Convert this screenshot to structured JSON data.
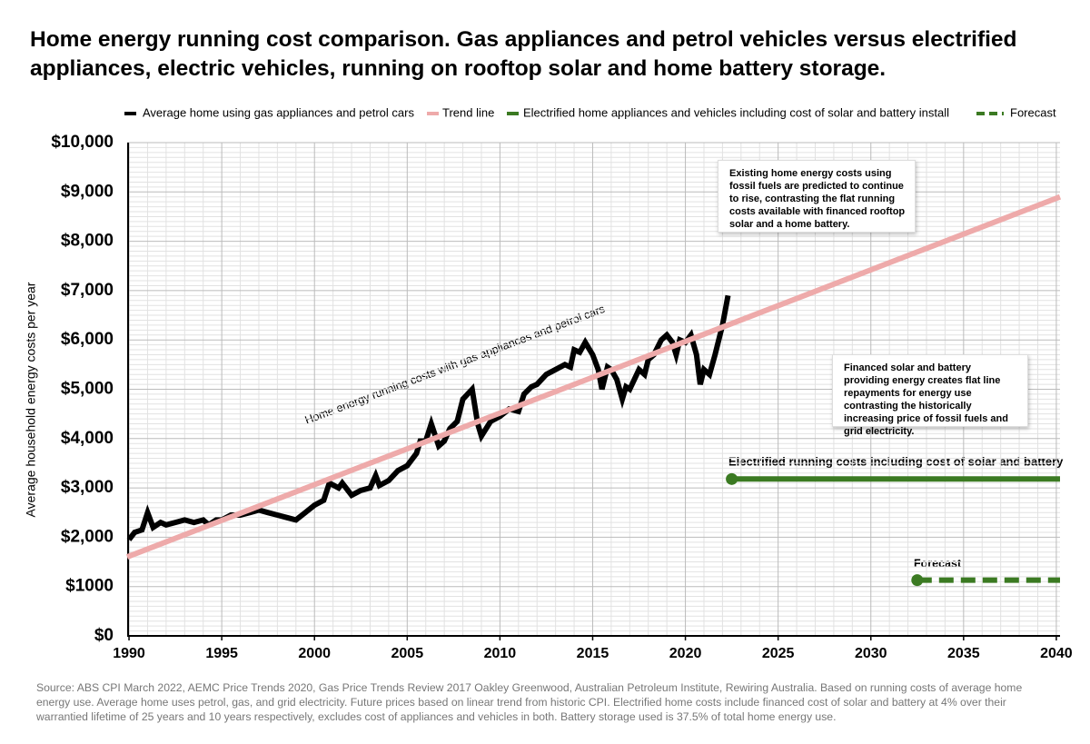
{
  "chart_data": {
    "type": "line",
    "title": "Home energy running cost comparison. Gas appliances and petrol vehicles versus electrified appliances, electric vehicles, running on rooftop solar and home battery storage.",
    "y_label": "Average household energy costs per year",
    "xlim": [
      1989.9,
      2040.2
    ],
    "ylim": [
      0,
      10000
    ],
    "xticks": [
      1990,
      1995,
      2000,
      2005,
      2010,
      2015,
      2020,
      2025,
      2030,
      2035,
      2040
    ],
    "yticks": [
      {
        "value": 0,
        "label": "$0"
      },
      {
        "value": 1000,
        "label": "$1000"
      },
      {
        "value": 2000,
        "label": "$2,000"
      },
      {
        "value": 3000,
        "label": "$3,000"
      },
      {
        "value": 4000,
        "label": "$4,000"
      },
      {
        "value": 5000,
        "label": "$5,000"
      },
      {
        "value": 6000,
        "label": "$6,000"
      },
      {
        "value": 7000,
        "label": "$7,000"
      },
      {
        "value": 8000,
        "label": "$8,000"
      },
      {
        "value": 9000,
        "label": "$9,000"
      },
      {
        "value": 10000,
        "label": "$10,000"
      }
    ],
    "grid": true,
    "series": [
      {
        "name": "Average home using gas appliances and petrol cars",
        "color": "#000000",
        "dash": false,
        "start_marker": false,
        "x": [
          1990,
          1990.3,
          1990.7,
          1991,
          1991.3,
          1991.7,
          1992,
          1992.5,
          1993,
          1993.5,
          1994,
          1994.3,
          1994.7,
          1995,
          1995.5,
          1996,
          1996.5,
          1997,
          1997.5,
          1998,
          1998.5,
          1999,
          1999.5,
          2000,
          2000.5,
          2000.8,
          2001.3,
          2001.5,
          2002,
          2002.5,
          2003,
          2003.3,
          2003.5,
          2004,
          2004.5,
          2005,
          2005.5,
          2005.7,
          2006,
          2006.3,
          2006.7,
          2007,
          2007.3,
          2007.7,
          2008,
          2008.5,
          2008.8,
          2009,
          2009.5,
          2010,
          2010.5,
          2011,
          2011.3,
          2011.7,
          2012,
          2012.5,
          2013,
          2013.5,
          2013.8,
          2014,
          2014.3,
          2014.6,
          2015,
          2015.3,
          2015.5,
          2015.8,
          2016,
          2016.3,
          2016.6,
          2016.8,
          2017,
          2017.5,
          2017.8,
          2018,
          2018.3,
          2018.7,
          2019,
          2019.3,
          2019.5,
          2019.7,
          2020,
          2020.3,
          2020.6,
          2020.8,
          2021,
          2021.3,
          2021.6,
          2022,
          2022.3
        ],
        "values": [
          1950,
          2100,
          2150,
          2500,
          2200,
          2300,
          2250,
          2300,
          2350,
          2300,
          2350,
          2250,
          2350,
          2350,
          2450,
          2450,
          2500,
          2550,
          2500,
          2450,
          2400,
          2350,
          2500,
          2650,
          2750,
          3100,
          3000,
          3100,
          2850,
          2950,
          3000,
          3250,
          3050,
          3150,
          3350,
          3450,
          3700,
          3950,
          3950,
          4300,
          3850,
          3950,
          4200,
          4350,
          4800,
          5000,
          4300,
          4050,
          4350,
          4450,
          4600,
          4550,
          4900,
          5050,
          5100,
          5300,
          5400,
          5500,
          5450,
          5800,
          5750,
          5950,
          5700,
          5400,
          5000,
          5450,
          5400,
          5200,
          4800,
          5050,
          5000,
          5400,
          5300,
          5600,
          5700,
          6000,
          6100,
          5950,
          5700,
          6000,
          5950,
          6100,
          5700,
          5100,
          5400,
          5300,
          5700,
          6300,
          6900
        ]
      },
      {
        "name": "Trend line",
        "color": "#eeaaaa",
        "dash": false,
        "start_marker": false,
        "x": [
          1989.9,
          2040.2
        ],
        "values": [
          1600,
          8900
        ]
      },
      {
        "name": "Electrified home appliances and vehicles including cost of solar and battery install",
        "color": "#3b7a22",
        "dash": false,
        "start_marker": true,
        "x": [
          2022.5,
          2040.2
        ],
        "values": [
          3180,
          3180
        ]
      },
      {
        "name": "Forecast",
        "color": "#3b7a22",
        "dash": true,
        "start_marker": true,
        "x": [
          2032.5,
          2040.2
        ],
        "values": [
          1130,
          1130
        ]
      }
    ],
    "annotations": [
      "Home energy running costs with gas appliances and petrol cars",
      "Existing home energy costs using fossil fuels are predicted to continue to rise, contrasting the flat running costs available with financed rooftop solar and a home battery.",
      "Financed solar and battery providing energy creates flat line repayments for energy use contrasting the historically increasing price of fossil fuels and grid electricity.",
      "Electrified running costs including cost of solar and battery",
      "Forecast"
    ],
    "source": "Source: ABS CPI March 2022, AEMC Price Trends 2020, Gas Price Trends Review 2017 Oakley Greenwood, Australian Petroleum Institute, Rewiring Australia. Based on running costs of average home energy use. Average home uses petrol, gas, and grid electricity. Future prices based on linear trend from historic CPI. Electrified home costs include financed cost of solar and battery at 4% over their warrantied lifetime of 25 years and 10 years respectively, excludes cost of appliances and vehicles in both. Battery storage used is 37.5% of total home energy use."
  }
}
